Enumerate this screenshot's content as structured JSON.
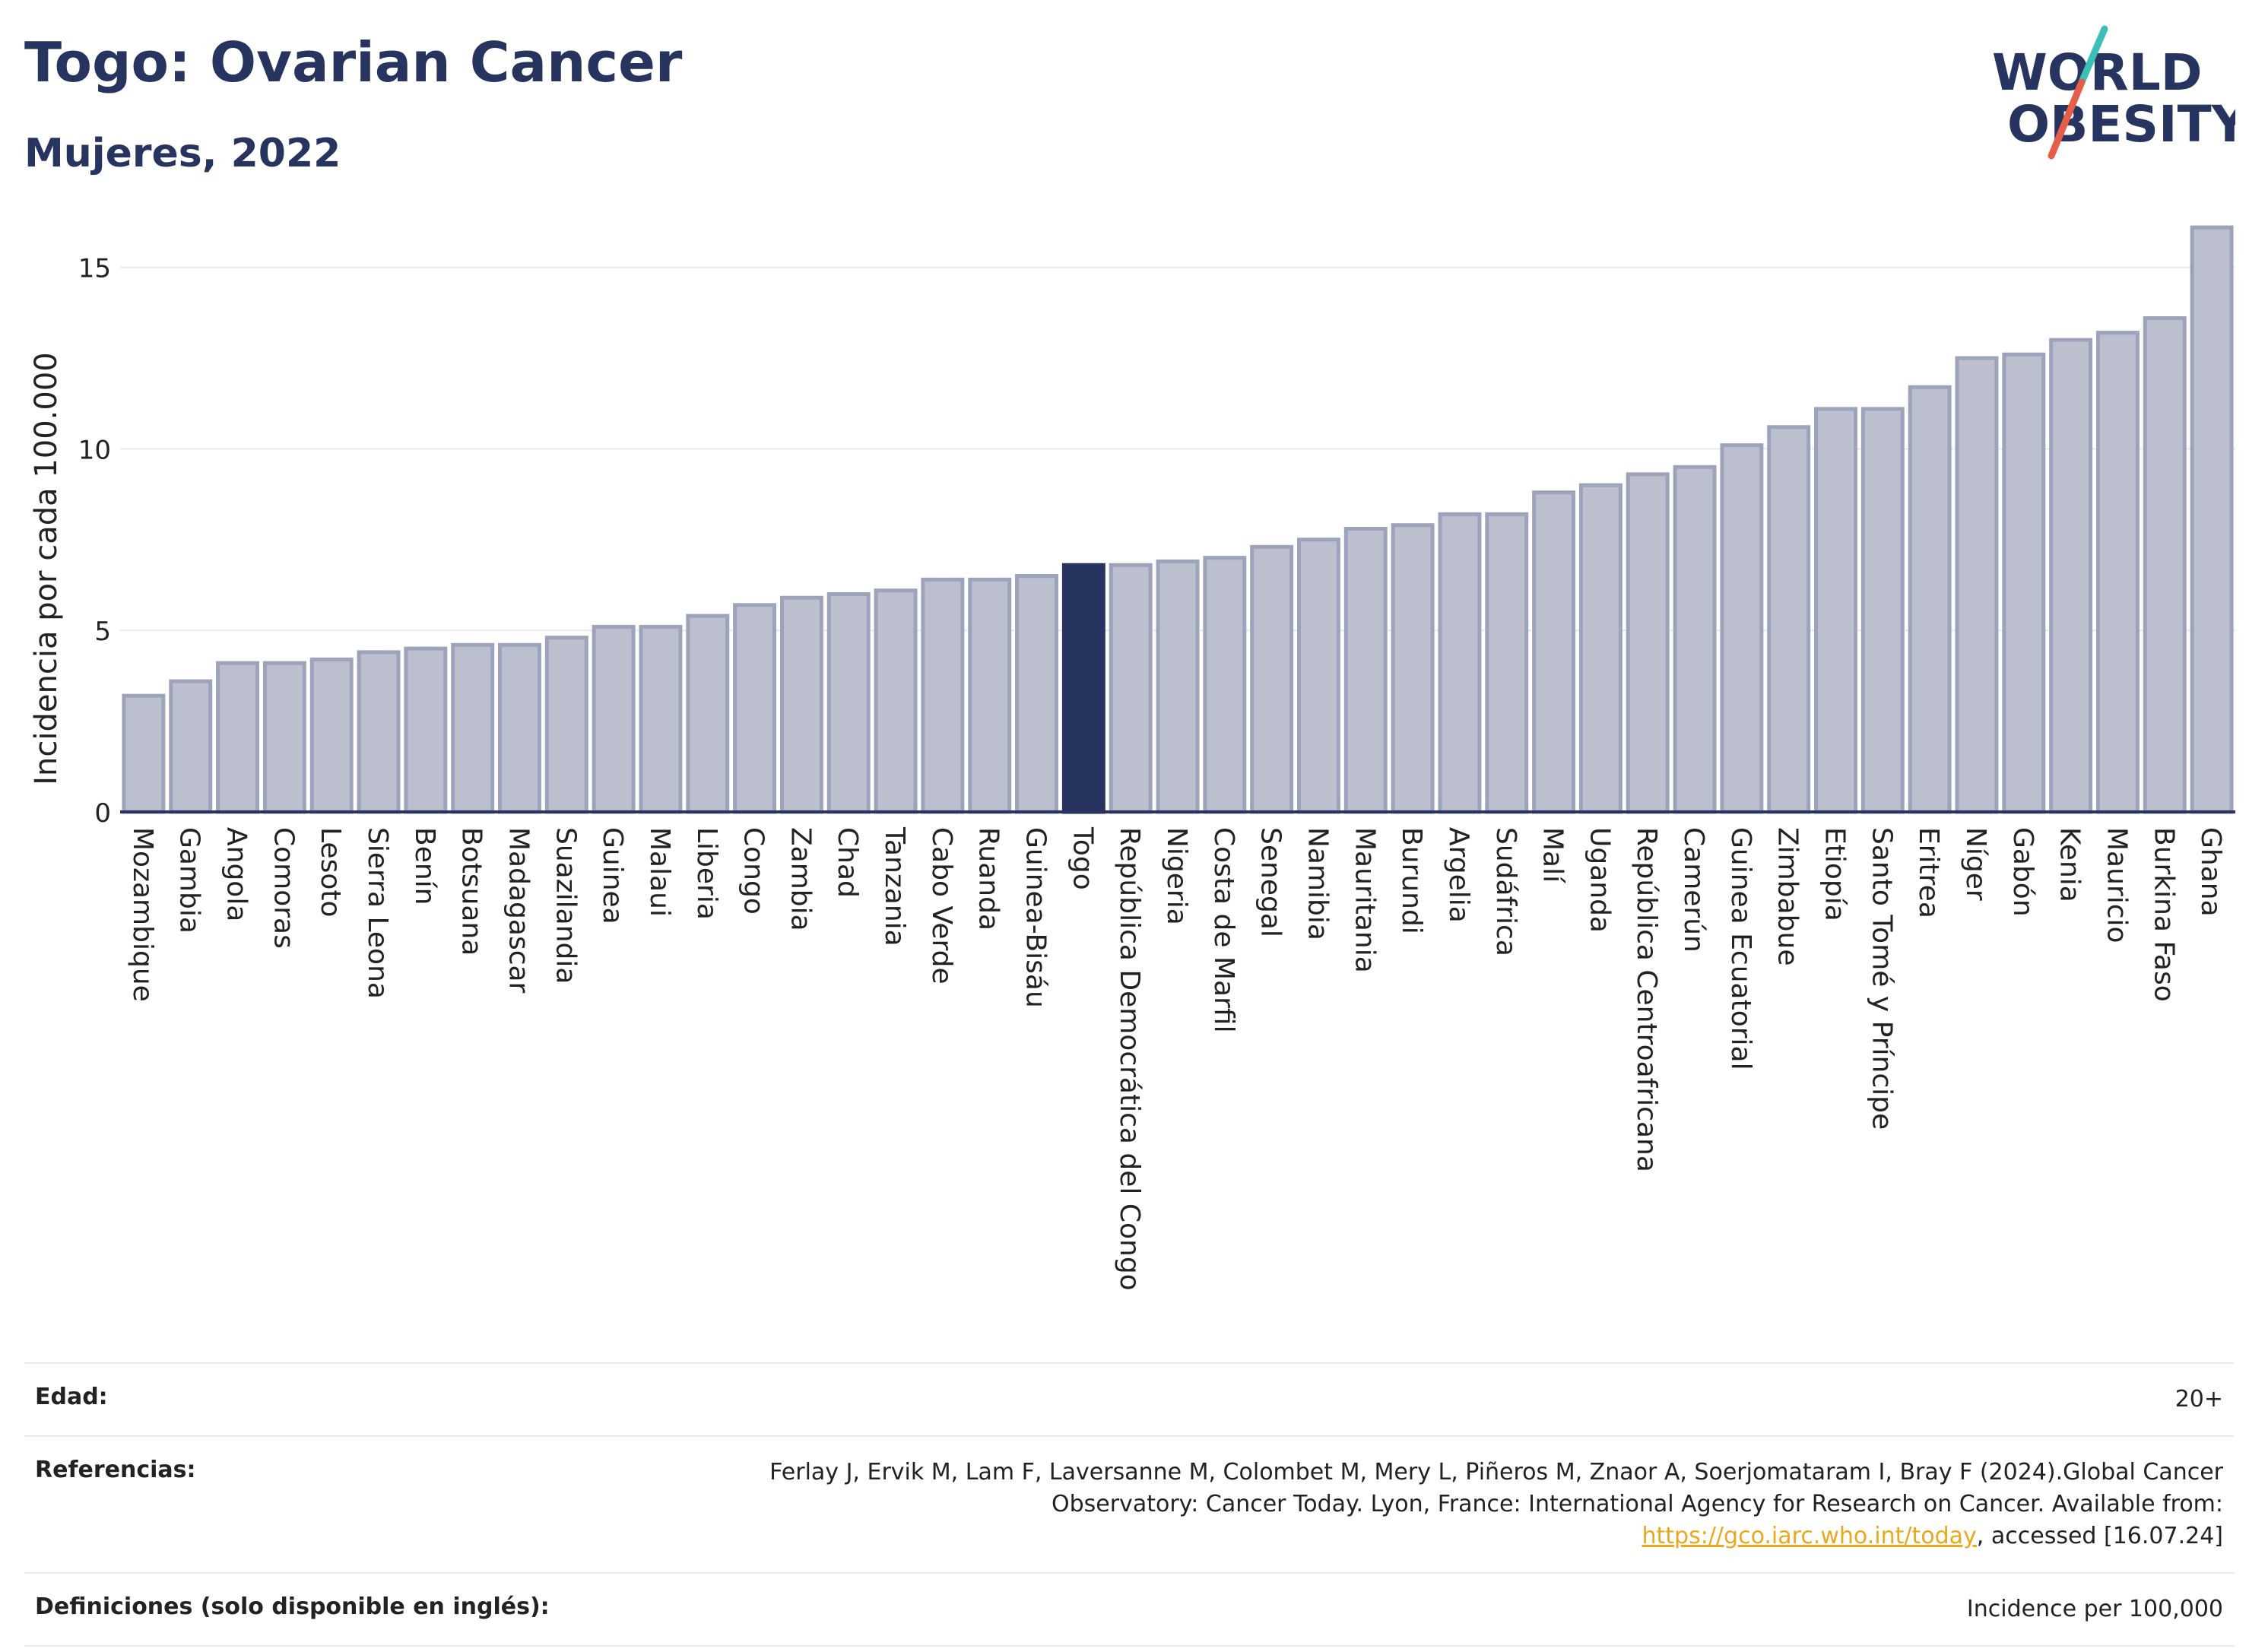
{
  "header": {
    "title": "Togo: Ovarian Cancer",
    "subtitle": "Mujeres, 2022"
  },
  "logo": {
    "line1": "WORLD",
    "line2": "OBESITY",
    "colors": {
      "text": "#283460",
      "slash_teal": "#3cbfb4",
      "slash_red": "#e55e48"
    }
  },
  "chart_data": {
    "type": "bar",
    "title": "Togo: Ovarian Cancer",
    "subtitle": "Mujeres, 2022",
    "xlabel": "",
    "ylabel": "Incidencia por cada 100.000",
    "ylim": [
      0,
      16.5
    ],
    "yticks": [
      0,
      5,
      10,
      15
    ],
    "grid": true,
    "legend": "none",
    "highlight": "Togo",
    "colors": {
      "bar": "#bcc0ce",
      "bar_edge": "#9da3ba",
      "highlight": "#283460",
      "grid": "#e6e9ee",
      "axis": "#283460"
    },
    "categories": [
      "Mozambique",
      "Gambia",
      "Angola",
      "Comoras",
      "Lesoto",
      "Sierra Leona",
      "Benín",
      "Botsuana",
      "Madagascar",
      "Suazilandia",
      "Guinea",
      "Malaui",
      "Liberia",
      "Congo",
      "Zambia",
      "Chad",
      "Tanzania",
      "Cabo Verde",
      "Ruanda",
      "Guinea-Bisáu",
      "Togo",
      "República Democrática del Congo",
      "Nigeria",
      "Costa de Marfil",
      "Senegal",
      "Namibia",
      "Mauritania",
      "Burundi",
      "Argelia",
      "Sudáfrica",
      "Malí",
      "Uganda",
      "República Centroafricana",
      "Camerún",
      "Guinea Ecuatorial",
      "Zimbabue",
      "Etiopía",
      "Santo Tomé y Príncipe",
      "Eritrea",
      "Níger",
      "Gabón",
      "Kenia",
      "Mauricio",
      "Burkina Faso",
      "Ghana"
    ],
    "values": [
      3.2,
      3.6,
      4.1,
      4.1,
      4.2,
      4.4,
      4.5,
      4.6,
      4.6,
      4.8,
      5.1,
      5.1,
      5.4,
      5.7,
      5.9,
      6.0,
      6.1,
      6.4,
      6.4,
      6.5,
      6.8,
      6.8,
      6.9,
      7.0,
      7.3,
      7.5,
      7.8,
      7.9,
      8.2,
      8.2,
      8.8,
      9.0,
      9.3,
      9.5,
      10.1,
      10.6,
      11.1,
      11.1,
      11.7,
      12.5,
      12.6,
      13.0,
      13.2,
      13.6,
      16.1
    ]
  },
  "info": {
    "age_label": "Edad:",
    "age_value": "20+",
    "references_label": "Referencias:",
    "references_text": "Ferlay J, Ervik M, Lam F, Laversanne M, Colombet M, Mery L, Piñeros M, Znaor A, Soerjomataram I, Bray F (2024).Global Cancer Observatory: Cancer Today. Lyon, France: International Agency for Research on Cancer. Available from: ",
    "references_link": "https://gco.iarc.who.int/today",
    "references_suffix": ", accessed [16.07.24]",
    "definitions_label": "Definiciones (solo disponible en inglés):",
    "definitions_value": "Incidence per 100,000"
  }
}
